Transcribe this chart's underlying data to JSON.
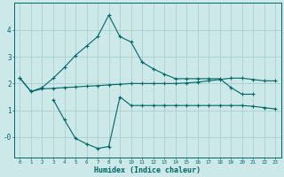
{
  "title": "",
  "xlabel": "Humidex (Indice chaleur)",
  "background_color": "#cce8e8",
  "grid_color": "#aacece",
  "line_color": "#006666",
  "x_min": -0.5,
  "x_max": 23.5,
  "y_min": -0.75,
  "y_max": 5.0,
  "yticks": [
    0,
    1,
    2,
    3,
    4
  ],
  "ytick_labels": [
    "-0",
    "1",
    "2",
    "3",
    "4"
  ],
  "curve1_x": [
    0,
    1,
    2,
    3,
    4,
    5,
    6,
    7,
    8,
    9,
    10,
    11,
    12,
    13,
    14,
    15,
    16,
    17,
    18,
    19,
    20,
    21,
    22,
    23
  ],
  "curve1_y": [
    2.2,
    1.7,
    1.8,
    1.82,
    1.85,
    1.87,
    1.9,
    1.92,
    1.95,
    1.97,
    2.0,
    2.0,
    2.0,
    2.0,
    2.0,
    2.02,
    2.05,
    2.1,
    2.15,
    2.2,
    2.2,
    2.15,
    2.1,
    2.1
  ],
  "curve2_x": [
    0,
    1,
    2,
    3,
    4,
    5,
    6,
    7,
    8,
    9,
    10,
    11,
    12,
    13,
    14,
    15,
    16,
    17,
    18,
    19,
    20,
    21
  ],
  "curve2_y": [
    2.2,
    1.7,
    1.85,
    2.2,
    2.6,
    3.05,
    3.4,
    3.75,
    4.55,
    3.75,
    3.55,
    2.8,
    2.55,
    2.35,
    2.18,
    2.18,
    2.18,
    2.18,
    2.18,
    1.85,
    1.6,
    1.6
  ],
  "curve3_x": [
    3,
    4,
    5,
    6,
    7,
    8,
    9,
    10,
    11,
    12,
    13,
    14,
    15,
    16,
    17,
    18,
    19,
    20,
    21,
    22,
    23
  ],
  "curve3_y": [
    1.4,
    0.65,
    -0.05,
    -0.25,
    -0.42,
    -0.35,
    1.5,
    1.18,
    1.18,
    1.18,
    1.18,
    1.18,
    1.18,
    1.18,
    1.18,
    1.18,
    1.18,
    1.18,
    1.15,
    1.1,
    1.05
  ],
  "figsize": [
    3.2,
    2.0
  ],
  "dpi": 100
}
